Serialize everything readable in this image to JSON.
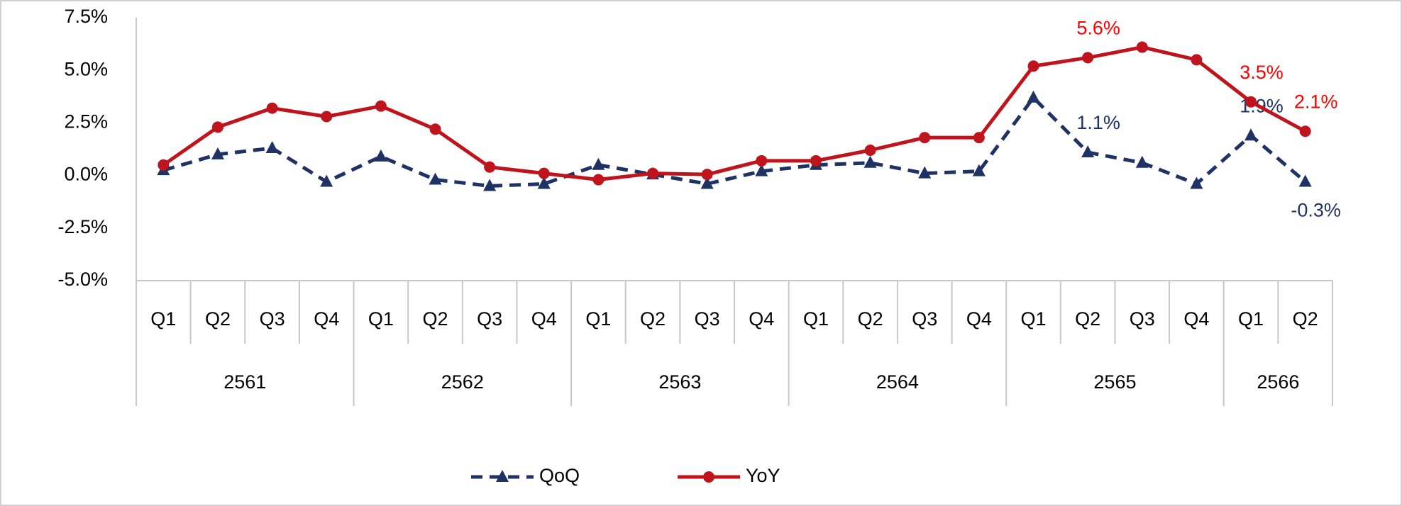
{
  "chart_data": {
    "type": "line",
    "categories": [
      "Q1",
      "Q2",
      "Q3",
      "Q4",
      "Q1",
      "Q2",
      "Q3",
      "Q4",
      "Q1",
      "Q2",
      "Q3",
      "Q4",
      "Q1",
      "Q2",
      "Q3",
      "Q4",
      "Q1",
      "Q2",
      "Q3",
      "Q4",
      "Q1",
      "Q2"
    ],
    "years": [
      "2561",
      null,
      null,
      null,
      "2562",
      null,
      null,
      null,
      "2563",
      null,
      null,
      null,
      "2564",
      null,
      null,
      null,
      "2565",
      null,
      null,
      null,
      "2566",
      null
    ],
    "series": [
      {
        "name": "QoQ",
        "color": "#1f3264",
        "label_color": "#1f3264",
        "line_style": "dashed",
        "marker": "triangle",
        "values": [
          0.25,
          1.0,
          1.3,
          -0.3,
          0.9,
          -0.2,
          -0.5,
          -0.4,
          0.5,
          0.05,
          -0.4,
          0.2,
          0.5,
          0.6,
          0.1,
          0.2,
          3.7,
          1.1,
          0.6,
          -0.4,
          1.9,
          -0.3
        ],
        "value_labels": [
          null,
          null,
          null,
          null,
          null,
          null,
          null,
          null,
          null,
          null,
          null,
          null,
          null,
          null,
          null,
          null,
          null,
          "1.1%",
          null,
          null,
          "1.9%",
          "-0.3%"
        ]
      },
      {
        "name": "YoY",
        "color": "#c0141c",
        "label_color": "#ff0000",
        "line_style": "solid",
        "marker": "circle",
        "values": [
          0.5,
          2.3,
          3.2,
          2.8,
          3.3,
          2.2,
          0.4,
          0.1,
          -0.2,
          0.1,
          0.05,
          0.7,
          0.7,
          1.2,
          1.8,
          1.8,
          5.2,
          5.6,
          6.1,
          5.5,
          3.5,
          2.1
        ],
        "value_labels": [
          null,
          null,
          null,
          null,
          null,
          null,
          null,
          null,
          null,
          null,
          null,
          null,
          null,
          null,
          null,
          null,
          null,
          "5.6%",
          null,
          null,
          "3.5%",
          "2.1%"
        ]
      }
    ],
    "ylim": [
      -5,
      7.5
    ],
    "yticks": [
      {
        "value": -5,
        "label": "-5.0%"
      },
      {
        "value": -2.5,
        "label": "-2.5%"
      },
      {
        "value": 0,
        "label": "0.0%"
      },
      {
        "value": 2.5,
        "label": "2.5%"
      },
      {
        "value": 5,
        "label": "5.0%"
      },
      {
        "value": 7.5,
        "label": "7.5%"
      }
    ],
    "grid": false,
    "legend": "bottom"
  }
}
